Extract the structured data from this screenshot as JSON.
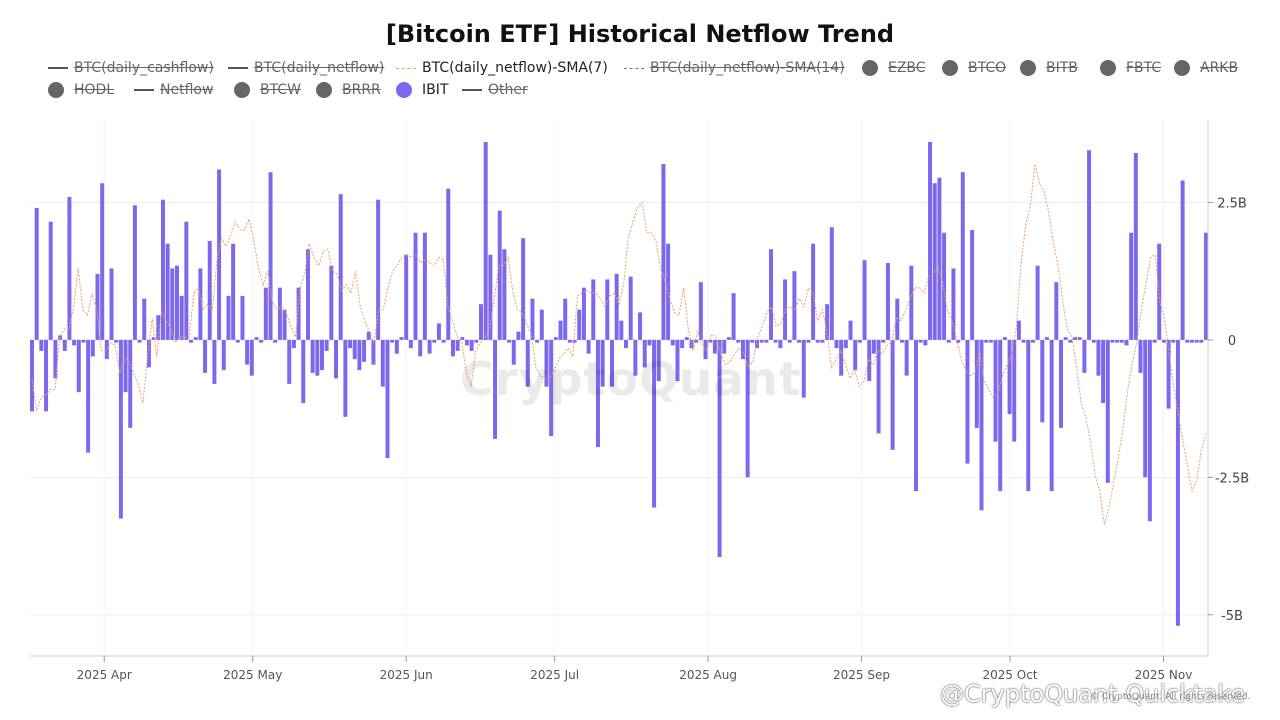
{
  "title": "[Bitcoin ETF] Historical Netflow Trend",
  "legend": [
    {
      "label": "BTC(daily_cashflow)",
      "symbol": "line",
      "active": false
    },
    {
      "label": "BTC(daily_netflow)",
      "symbol": "line",
      "active": false
    },
    {
      "label": "BTC(daily_netflow)-SMA(7)",
      "symbol": "sma7",
      "active": true
    },
    {
      "label": "BTC(daily_netflow)-SMA(14)",
      "symbol": "dash",
      "active": false
    },
    {
      "label": "EZBC",
      "symbol": "dot",
      "active": false
    },
    {
      "label": "BTCO",
      "symbol": "dot",
      "active": false
    },
    {
      "label": "BITB",
      "symbol": "dot",
      "active": false
    },
    {
      "label": "FBTC",
      "symbol": "dot",
      "active": false
    },
    {
      "label": "ARKB",
      "symbol": "dot",
      "active": false
    },
    {
      "label": "HODL",
      "symbol": "dot",
      "active": false
    },
    {
      "label": "Netflow",
      "symbol": "line",
      "active": false
    },
    {
      "label": "BTCW",
      "symbol": "dot",
      "active": false
    },
    {
      "label": "BRRR",
      "symbol": "dot",
      "active": false
    },
    {
      "label": "IBIT",
      "symbol": "dot-ibit",
      "active": true
    },
    {
      "label": "Other",
      "symbol": "line",
      "active": false
    }
  ],
  "watermark": "CryptoQuant",
  "attribution": "@CryptoQuant Quicktake",
  "copyright": "© CryptoQuant. All rights reserved.",
  "colors": {
    "ibit": "#7b68ee",
    "sma7": "#f0a060",
    "inactive": "#666666",
    "grid": "#eeeeee"
  },
  "chart_data": {
    "type": "bar",
    "x_start": "2025-03-17",
    "x_end": "2025-11-10",
    "x_ticks": [
      {
        "date": "2025-04-01",
        "label": "2025 Apr"
      },
      {
        "date": "2025-05-01",
        "label": "2025 May"
      },
      {
        "date": "2025-06-01",
        "label": "2025 Jun"
      },
      {
        "date": "2025-07-01",
        "label": "2025 Jul"
      },
      {
        "date": "2025-08-01",
        "label": "2025 Aug"
      },
      {
        "date": "2025-09-01",
        "label": "2025 Sep"
      },
      {
        "date": "2025-10-01",
        "label": "2025 Oct"
      },
      {
        "date": "2025-11-01",
        "label": "2025 Nov"
      }
    ],
    "y_ticks": [
      {
        "value": 2.5,
        "label": "2.5B"
      },
      {
        "value": 0,
        "label": "0"
      },
      {
        "value": -2.5,
        "label": "-2.5B"
      },
      {
        "value": -5,
        "label": "-5B"
      }
    ],
    "ylim": [
      -5.75,
      4.0
    ],
    "y_unit": "USD billions",
    "series": [
      {
        "name": "IBIT",
        "type": "bar",
        "values": [
          -1.3,
          2.4,
          -0.2,
          -1.3,
          2.15,
          -0.7,
          0.08,
          -0.2,
          2.6,
          -0.1,
          -0.95,
          -0.05,
          -2.05,
          -0.3,
          1.2,
          2.85,
          -0.35,
          1.3,
          -0.05,
          -3.25,
          -0.95,
          -1.6,
          2.45,
          -0.05,
          0.75,
          -0.5,
          0.05,
          0.45,
          2.55,
          1.75,
          1.3,
          1.35,
          0.8,
          2.15,
          -0.05,
          0.05,
          1.3,
          -0.6,
          1.8,
          -0.8,
          3.1,
          -0.55,
          0.8,
          1.75,
          -0.05,
          0.8,
          -0.45,
          -0.65,
          0.05,
          -0.05,
          0.95,
          3.05,
          -0.05,
          0.95,
          0.55,
          -0.8,
          -0.15,
          0.95,
          -1.15,
          1.65,
          -0.6,
          -0.65,
          -0.55,
          -0.2,
          1.35,
          -0.7,
          2.65,
          -1.4,
          -0.15,
          -0.35,
          -0.55,
          -0.4,
          0.15,
          -0.45,
          2.55,
          -0.85,
          -2.15,
          -0.05,
          -0.25,
          0.05,
          1.55,
          -0.15,
          1.95,
          -0.3,
          1.95,
          -0.25,
          -0.05,
          0.3,
          -0.05,
          2.75,
          -0.3,
          -0.2,
          0.05,
          -0.1,
          -0.2,
          -0.05,
          0.65,
          3.6,
          1.55,
          -1.8,
          2.35,
          1.65,
          -0.05,
          -0.45,
          0.15,
          1.85,
          -0.85,
          0.75,
          -0.05,
          0.55,
          -0.85,
          -1.75,
          0.05,
          0.35,
          0.75,
          -0.05,
          -0.05,
          0.55,
          0.95,
          -0.25,
          1.1,
          -1.95,
          -0.85,
          1.1,
          -0.85,
          1.2,
          0.35,
          -0.15,
          1.15,
          -0.65,
          0.5,
          -0.5,
          -0.1,
          -3.05,
          -0.75,
          3.2,
          1.75,
          -0.1,
          -0.75,
          -0.15,
          0.05,
          -0.15,
          -0.05,
          1.05,
          -0.35,
          -0.05,
          -0.25,
          -3.95,
          -0.25,
          0.05,
          0.85,
          -0.05,
          -0.35,
          -2.5,
          -0.05,
          -0.15,
          -0.05,
          -0.05,
          1.65,
          -0.05,
          -0.15,
          1.1,
          -0.05,
          1.25,
          -0.05,
          -1.05,
          -0.05,
          1.75,
          -0.05,
          -0.05,
          0.65,
          2.05,
          -0.15,
          -0.65,
          -0.15,
          0.35,
          -0.55,
          -0.05,
          1.45,
          -0.75,
          -0.25,
          -1.7,
          -0.05,
          1.4,
          -2.0,
          0.75,
          -0.05,
          -0.65,
          1.35,
          -2.75,
          -0.05,
          -0.1,
          3.6,
          2.85,
          2.95,
          1.95,
          -0.05,
          1.3,
          -0.05,
          3.05,
          -2.25,
          2.0,
          -1.6,
          -3.1,
          -0.05,
          -0.05,
          -1.85,
          -2.75,
          0.05,
          -1.35,
          -1.85,
          0.35,
          -0.05,
          -2.75,
          -0.05,
          1.35,
          -1.5,
          0.05,
          -2.75,
          1.05,
          -1.6,
          0.05,
          -0.05,
          0.05,
          0.05,
          -0.6,
          3.45,
          -0.05,
          -0.65,
          -1.15,
          -2.6,
          -0.05,
          -0.05,
          -0.05,
          -0.1,
          1.95,
          3.4,
          -0.6,
          -2.5,
          -3.3,
          -0.05,
          1.75,
          -0.05,
          -1.25,
          -0.05,
          -5.2,
          2.9,
          -0.05,
          -0.05,
          -0.05,
          -0.05,
          1.95
        ]
      },
      {
        "name": "BTC(daily_netflow)-SMA(7)",
        "type": "line",
        "values": [
          -0.7,
          -1.3,
          -1.05,
          -1.0,
          -0.9,
          -0.9,
          0.05,
          0.2,
          0.2,
          0.6,
          1.3,
          0.55,
          0.45,
          0.85,
          0.55,
          -0.2,
          -0.2,
          -0.05,
          -0.1,
          -0.6,
          -0.35,
          -0.4,
          -0.6,
          -0.8,
          -1.15,
          -0.3,
          0.4,
          -0.3,
          0.5,
          0.35,
          0.2,
          -0.05,
          0.05,
          0.05,
          0.05,
          0.85,
          0.95,
          0.55,
          0.65,
          0.55,
          1.45,
          1.85,
          1.7,
          1.9,
          2.15,
          2.0,
          2.0,
          2.2,
          1.8,
          1.3,
          1.0,
          1.25,
          0.7,
          0.55,
          0.6,
          0.5,
          0.25,
          0.05,
          0.95,
          1.2,
          1.75,
          1.5,
          1.35,
          1.6,
          1.65,
          1.25,
          1.2,
          0.9,
          1.0,
          0.85,
          1.25,
          0.6,
          0.35,
          0.15,
          -0.05,
          0.55,
          0.55,
          0.95,
          1.25,
          1.35,
          1.5,
          1.55,
          1.5,
          1.55,
          1.4,
          1.45,
          1.4,
          1.35,
          1.5,
          1.45,
          0.6,
          0.35,
          0.05,
          -0.05,
          -0.6,
          -0.85,
          -0.2,
          -0.05,
          0.05,
          0.2,
          0.75,
          1.35,
          1.35,
          1.5,
          0.9,
          0.55,
          0.5,
          0.3,
          0.1,
          -0.5,
          -0.65,
          -0.7,
          -0.7,
          -0.55,
          -0.35,
          -0.25,
          -0.15,
          -0.3,
          0.8,
          0.85,
          0.9,
          0.85,
          0.85,
          0.75,
          0.6,
          0.8,
          0.85,
          0.65,
          1.0,
          1.85,
          2.15,
          2.4,
          2.5,
          1.95,
          1.95,
          1.8,
          1.3,
          1.05,
          0.75,
          0.5,
          0.45,
          0.95,
          0.2,
          -0.2,
          0.15,
          -0.1,
          -0.2,
          0.1,
          0.05,
          -0.25,
          -0.45,
          -0.4,
          -0.25,
          -0.15,
          -0.25,
          -0.5,
          -0.4,
          0.05,
          0.25,
          0.5,
          0.6,
          0.25,
          0.3,
          0.55,
          0.6,
          0.55,
          0.75,
          0.6,
          0.95,
          0.85,
          0.35,
          0.55,
          0.15,
          -0.5,
          -0.35,
          -0.2,
          -0.45,
          -0.7,
          -0.55,
          -0.85,
          -0.75,
          -0.35,
          -0.45,
          -0.2,
          -0.25,
          -0.1,
          -0.05,
          0.4,
          0.35,
          0.55,
          0.75,
          0.95,
          0.95,
          0.85,
          1.15,
          1.2,
          1.35,
          1.05,
          0.55,
          0.35,
          0.05,
          -0.35,
          -0.55,
          -0.65,
          -0.6,
          -0.2,
          -0.75,
          -0.9,
          -1.05,
          -0.95,
          -0.65,
          -0.45,
          -0.25,
          0.25,
          1.4,
          2.1,
          2.45,
          3.2,
          2.85,
          2.7,
          2.3,
          1.75,
          1.35,
          0.7,
          0.2,
          0.05,
          -0.5,
          -1.15,
          -1.4,
          -1.85,
          -2.45,
          -2.75,
          -3.35,
          -3.05,
          -2.6,
          -2.15,
          -1.65,
          -0.95,
          -0.45,
          -0.05,
          0.55,
          1.0,
          1.5,
          1.55,
          0.7,
          0.4,
          -0.25,
          -0.85,
          -1.35,
          -1.85,
          -2.3,
          -2.75,
          -2.55,
          -2.0,
          -1.7
        ]
      }
    ]
  }
}
